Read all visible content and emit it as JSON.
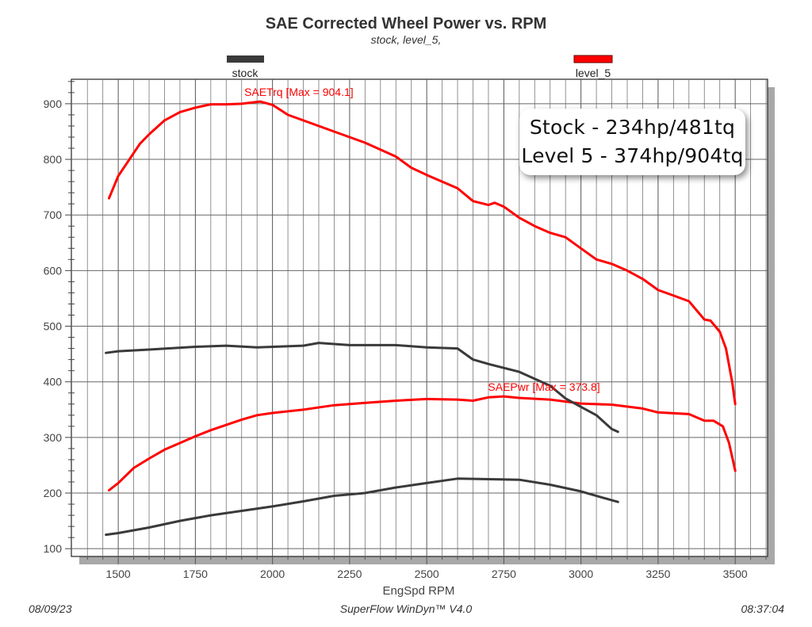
{
  "chart_data": {
    "type": "line",
    "title": "SAE Corrected Wheel Power vs. RPM",
    "subtitle": "stock, level_5,",
    "xlabel": "EngSpd RPM",
    "ylabel": "",
    "xlim": [
      1348,
      3605
    ],
    "ylim": [
      86,
      944
    ],
    "x_ticks": [
      1500,
      1750,
      2000,
      2250,
      2500,
      2750,
      3000,
      3250,
      3500
    ],
    "y_ticks": [
      100,
      200,
      300,
      400,
      500,
      600,
      700,
      800,
      900
    ],
    "grid": true,
    "legend": [
      {
        "name": "stock",
        "color": "#3a3a3a"
      },
      {
        "name": "level_5",
        "color": "#ff0000"
      }
    ],
    "series": [
      {
        "name": "level_5 SAETrq",
        "color": "#ff0000",
        "x": [
          1470,
          1500,
          1570,
          1600,
          1650,
          1700,
          1750,
          1800,
          1850,
          1900,
          1960,
          2000,
          2050,
          2100,
          2200,
          2300,
          2400,
          2450,
          2500,
          2600,
          2650,
          2700,
          2720,
          2750,
          2800,
          2850,
          2900,
          2950,
          3000,
          3050,
          3100,
          3150,
          3200,
          3250,
          3300,
          3350,
          3400,
          3420,
          3450,
          3470,
          3490,
          3500
        ],
        "y": [
          730,
          770,
          828,
          845,
          870,
          885,
          893,
          899,
          899,
          900,
          904,
          898,
          880,
          870,
          850,
          830,
          805,
          785,
          772,
          748,
          725,
          718,
          722,
          715,
          695,
          680,
          668,
          660,
          640,
          620,
          612,
          600,
          585,
          565,
          555,
          545,
          512,
          510,
          490,
          460,
          400,
          360
        ]
      },
      {
        "name": "level_5 SAEPwr",
        "color": "#ff0000",
        "x": [
          1470,
          1500,
          1550,
          1600,
          1650,
          1700,
          1750,
          1800,
          1900,
          1950,
          2000,
          2100,
          2200,
          2300,
          2400,
          2500,
          2600,
          2650,
          2700,
          2750,
          2800,
          2900,
          3000,
          3100,
          3200,
          3250,
          3350,
          3400,
          3430,
          3460,
          3480,
          3500
        ],
        "y": [
          205,
          218,
          245,
          262,
          278,
          290,
          302,
          313,
          332,
          340,
          344,
          350,
          358,
          362,
          366,
          369,
          368,
          366,
          372,
          373.8,
          371,
          368,
          361,
          359,
          352,
          345,
          342,
          330,
          330,
          320,
          290,
          240
        ]
      },
      {
        "name": "stock SAETrq",
        "color": "#3a3a3a",
        "x": [
          1460,
          1500,
          1600,
          1750,
          1850,
          1950,
          2100,
          2150,
          2250,
          2400,
          2500,
          2600,
          2650,
          2700,
          2800,
          2900,
          2950,
          3000,
          3050,
          3100,
          3120
        ],
        "y": [
          452,
          455,
          458,
          463,
          465,
          462,
          465,
          470,
          466,
          466,
          462,
          460,
          440,
          432,
          418,
          393,
          370,
          355,
          340,
          315,
          310
        ]
      },
      {
        "name": "stock SAEPwr",
        "color": "#3a3a3a",
        "x": [
          1460,
          1500,
          1600,
          1700,
          1800,
          1900,
          2000,
          2100,
          2200,
          2300,
          2400,
          2500,
          2600,
          2700,
          2800,
          2900,
          3000,
          3100,
          3120
        ],
        "y": [
          125,
          128,
          138,
          150,
          160,
          168,
          176,
          185,
          195,
          200,
          210,
          218,
          226,
          225,
          224,
          215,
          203,
          187,
          184
        ]
      }
    ],
    "annotations": [
      {
        "text": "SAETrq [Max = 904.1]",
        "x": 1960,
        "y": 904.1
      },
      {
        "text": "SAEPwr [Max = 373.8]",
        "x": 2750,
        "y": 373.8
      }
    ]
  },
  "callout": {
    "line1": "Stock - 234hp/481tq",
    "line2": "Level 5 - 374hp/904tq"
  },
  "footer": {
    "date": "08/09/23",
    "software": "SuperFlow WinDyn™ V4.0",
    "time": "08:37:04"
  }
}
